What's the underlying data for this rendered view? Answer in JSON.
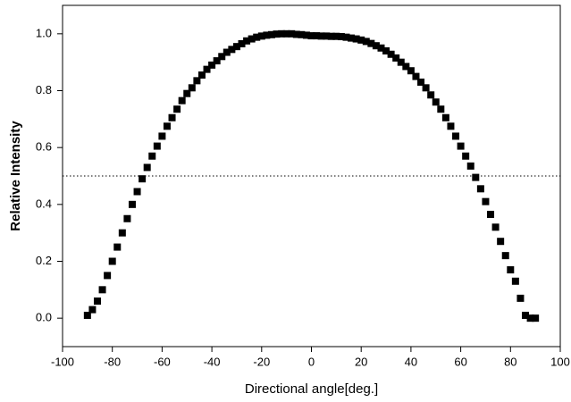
{
  "chart_data": {
    "type": "scatter",
    "x_label": "Directional angle[deg.]",
    "y_label": "Relative Intensity",
    "x": [
      -90,
      -88,
      -86,
      -84,
      -82,
      -80,
      -78,
      -76,
      -74,
      -72,
      -70,
      -68,
      -66,
      -64,
      -62,
      -60,
      -58,
      -56,
      -54,
      -52,
      -50,
      -48,
      -46,
      -44,
      -42,
      -40,
      -38,
      -36,
      -34,
      -32,
      -30,
      -28,
      -26,
      -24,
      -22,
      -20,
      -18,
      -16,
      -14,
      -12,
      -10,
      -8,
      -6,
      -4,
      -2,
      0,
      2,
      4,
      6,
      8,
      10,
      12,
      14,
      16,
      18,
      20,
      22,
      24,
      26,
      28,
      30,
      32,
      34,
      36,
      38,
      40,
      42,
      44,
      46,
      48,
      50,
      52,
      54,
      56,
      58,
      60,
      62,
      64,
      66,
      68,
      70,
      72,
      74,
      76,
      78,
      80,
      82,
      84,
      86,
      88,
      90
    ],
    "values": [
      0.01,
      0.03,
      0.06,
      0.1,
      0.15,
      0.2,
      0.25,
      0.3,
      0.35,
      0.4,
      0.445,
      0.49,
      0.53,
      0.57,
      0.605,
      0.64,
      0.675,
      0.705,
      0.735,
      0.765,
      0.79,
      0.81,
      0.835,
      0.855,
      0.875,
      0.89,
      0.905,
      0.92,
      0.935,
      0.945,
      0.955,
      0.965,
      0.975,
      0.982,
      0.988,
      0.992,
      0.995,
      0.997,
      0.999,
      1.0,
      1.0,
      1.0,
      0.998,
      0.997,
      0.995,
      0.993,
      0.993,
      0.992,
      0.992,
      0.991,
      0.991,
      0.99,
      0.988,
      0.985,
      0.982,
      0.978,
      0.973,
      0.966,
      0.958,
      0.95,
      0.94,
      0.928,
      0.915,
      0.9,
      0.885,
      0.87,
      0.85,
      0.83,
      0.81,
      0.785,
      0.76,
      0.735,
      0.705,
      0.675,
      0.64,
      0.605,
      0.57,
      0.535,
      0.495,
      0.455,
      0.41,
      0.365,
      0.32,
      0.27,
      0.22,
      0.17,
      0.13,
      0.07,
      0.01,
      0.0,
      0.0
    ],
    "color": "#000000",
    "reference_line": 0.5,
    "xlim": [
      -100,
      100
    ],
    "xticks": [
      -100,
      -80,
      -60,
      -40,
      -20,
      0,
      20,
      40,
      60,
      80,
      100
    ],
    "ylim": [
      -0.1,
      1.1
    ],
    "yticks": [
      {
        "value": 0,
        "label": "0.0"
      },
      0.2,
      0.4,
      0.6,
      0.8,
      {
        "value": 1,
        "label": "1.0"
      }
    ]
  }
}
